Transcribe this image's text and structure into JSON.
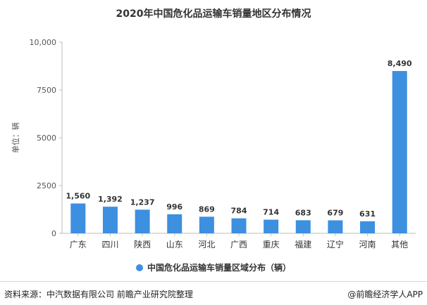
{
  "title": "2020年中国危化品运输车销量地区分布情况",
  "chart_data": {
    "type": "bar",
    "ylabel": "单位：辆",
    "ylim": [
      0,
      10000
    ],
    "yticks": [
      0,
      2500,
      5000,
      7500,
      10000
    ],
    "ytick_labels": [
      "0",
      "2500",
      "5000",
      "7500",
      "10,000"
    ],
    "categories": [
      "广东",
      "四川",
      "陕西",
      "山东",
      "河北",
      "广西",
      "重庆",
      "福建",
      "辽宁",
      "河南",
      "其他"
    ],
    "series": [
      {
        "name": "中国危化品运输车销量区域分布（辆）",
        "values": [
          1560,
          1392,
          1237,
          996,
          869,
          784,
          714,
          683,
          679,
          631,
          8490
        ],
        "labels": [
          "1,560",
          "1,392",
          "1,237",
          "996",
          "869",
          "784",
          "714",
          "683",
          "679",
          "631",
          "8,490"
        ]
      }
    ],
    "grid": false,
    "legend_position": "bottom",
    "bar_color": "#3d8fe0"
  },
  "footer": {
    "source": "资料来源：中汽数据有限公司 前瞻产业研究院整理",
    "brand": "@前瞻经济学人APP"
  }
}
